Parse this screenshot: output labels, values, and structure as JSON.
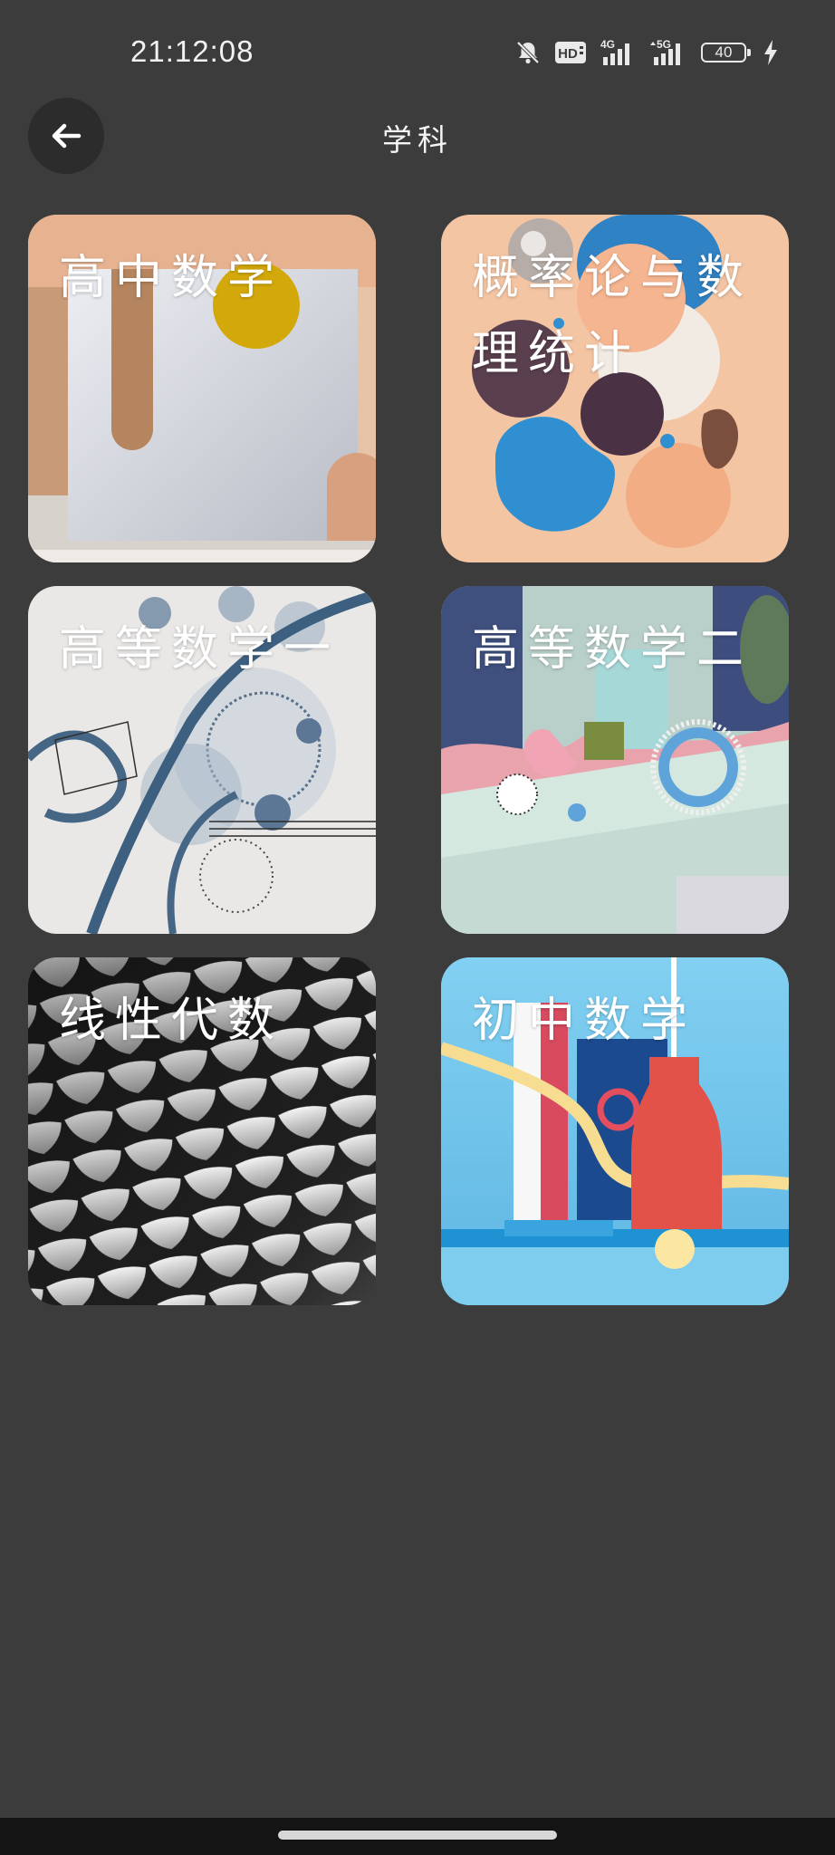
{
  "status_bar": {
    "time": "21:12:08",
    "battery_level": "40",
    "network_labels": [
      "4G",
      "5G"
    ],
    "hd_label": "HD",
    "icons": [
      "bell-muted-icon",
      "hd-icon",
      "signal-4g-icon",
      "signal-5g-icon",
      "battery-icon",
      "charging-icon"
    ]
  },
  "header": {
    "title": "学科",
    "back_icon": "arrow-left-icon"
  },
  "subjects": [
    {
      "label": "高中数学"
    },
    {
      "label": "概率论与数理统计"
    },
    {
      "label": "高等数学一"
    },
    {
      "label": "高等数学二"
    },
    {
      "label": "线性代数"
    },
    {
      "label": "初中数学"
    }
  ],
  "colors": {
    "background": "#3c3c3c",
    "nav_bar": "#141414",
    "back_button": "#2c2c2c"
  }
}
